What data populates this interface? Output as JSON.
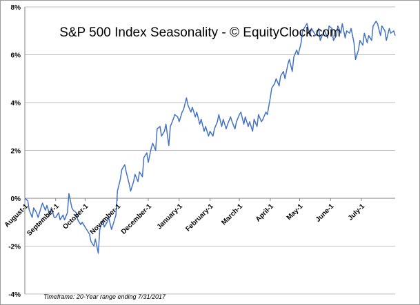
{
  "chart_data": {
    "type": "line",
    "title": "S&P 500 Index Seasonality - © EquityClock.com",
    "footnote": "Timeframe: 20-Year range ending 7/31/2017",
    "xlabel": "",
    "ylabel": "",
    "ylim": [
      -4,
      8
    ],
    "yticks": [
      -4,
      -2,
      0,
      2,
      4,
      6,
      8
    ],
    "ytick_labels": [
      "-4%",
      "-2%",
      "0%",
      "2%",
      "4%",
      "6%",
      "8%"
    ],
    "grid": "horizontal",
    "legend": "none",
    "colors": {
      "line": "#4472c4",
      "grid": "#bfbfbf",
      "axis": "#808080"
    },
    "month_ticks": [
      {
        "label": "August-1",
        "day": 0
      },
      {
        "label": "September-1",
        "day": 21
      },
      {
        "label": "October-1",
        "day": 41
      },
      {
        "label": "November-1",
        "day": 63
      },
      {
        "label": "December-1",
        "day": 84
      },
      {
        "label": "January-1",
        "day": 105
      },
      {
        "label": "February-1",
        "day": 126
      },
      {
        "label": "March-1",
        "day": 146
      },
      {
        "label": "April-1",
        "day": 167
      },
      {
        "label": "May-1",
        "day": 187
      },
      {
        "label": "June-1",
        "day": 208
      },
      {
        "label": "July-1",
        "day": 229
      }
    ],
    "x_max": 252,
    "series": [
      {
        "x": [
          0,
          2,
          3,
          5,
          6,
          8,
          9,
          11,
          12,
          14,
          15,
          17,
          18,
          20,
          21,
          23,
          24,
          26,
          27,
          29,
          30,
          32,
          33,
          35,
          36,
          38,
          39,
          41,
          42,
          44,
          45,
          47,
          48,
          50,
          51,
          53,
          54,
          56,
          57,
          59,
          60,
          62,
          63,
          65,
          66,
          68,
          69,
          71,
          72,
          74,
          75,
          77,
          78,
          80,
          81,
          83,
          84,
          86,
          87,
          89,
          90,
          92,
          93,
          95,
          96,
          98,
          99,
          101,
          102,
          104,
          105,
          107,
          108,
          110,
          111,
          113,
          114,
          116,
          117,
          119,
          120,
          122,
          123,
          125,
          126,
          128,
          129,
          131,
          132,
          134,
          135,
          137,
          138,
          140,
          141,
          143,
          144,
          146,
          147,
          149,
          150,
          152,
          153,
          155,
          156,
          158,
          159,
          161,
          162,
          164,
          165,
          167,
          168,
          170,
          171,
          173,
          174,
          176,
          177,
          179,
          180,
          182,
          183,
          185,
          186,
          188,
          189,
          191,
          192,
          194,
          195,
          197,
          198,
          200,
          201,
          203,
          204,
          206,
          207,
          209,
          210,
          212,
          213,
          215,
          216,
          218,
          219,
          221,
          222,
          224,
          225,
          227,
          228,
          230,
          231,
          233,
          234,
          236,
          237,
          239,
          240,
          242,
          243,
          245,
          246,
          248,
          249,
          251,
          252
        ],
        "values": [
          0.0,
          -0.1,
          -0.5,
          -0.8,
          -0.4,
          -0.6,
          -0.8,
          -0.4,
          -0.2,
          -0.5,
          -0.3,
          -0.7,
          -0.4,
          -0.8,
          -0.8,
          -0.6,
          -0.9,
          -0.7,
          -0.9,
          -0.6,
          0.2,
          -0.4,
          -0.5,
          -0.6,
          -0.9,
          -1.1,
          -1.0,
          -1.2,
          -1.3,
          -1.5,
          -1.8,
          -2.0,
          -1.7,
          -2.3,
          -1.3,
          -0.9,
          -1.2,
          -1.0,
          -0.8,
          -1.3,
          -1.1,
          -0.7,
          0.3,
          0.8,
          1.2,
          1.4,
          1.1,
          0.6,
          0.3,
          0.7,
          1.0,
          0.7,
          1.1,
          0.9,
          1.7,
          1.9,
          1.5,
          2.1,
          2.3,
          2.0,
          2.9,
          3.0,
          2.6,
          2.8,
          3.1,
          2.2,
          3.0,
          3.3,
          3.5,
          3.4,
          3.2,
          3.6,
          3.7,
          4.2,
          3.9,
          3.6,
          3.8,
          3.4,
          3.6,
          3.1,
          3.3,
          2.8,
          3.0,
          2.6,
          2.8,
          2.6,
          2.9,
          3.2,
          3.5,
          3.0,
          3.3,
          2.9,
          3.1,
          3.4,
          3.2,
          2.9,
          3.2,
          3.5,
          3.6,
          3.1,
          3.4,
          3.0,
          3.2,
          2.8,
          3.3,
          3.0,
          3.5,
          3.2,
          3.3,
          3.6,
          3.5,
          4.2,
          4.6,
          4.8,
          5.0,
          4.7,
          5.1,
          5.3,
          5.0,
          5.6,
          5.8,
          5.3,
          5.9,
          6.2,
          6.0,
          6.5,
          7.0,
          7.2,
          7.3,
          6.8,
          7.1,
          6.9,
          6.8,
          7.1,
          6.6,
          6.9,
          7.0,
          6.7,
          7.2,
          7.1,
          6.6,
          6.8,
          7.2,
          6.9,
          7.3,
          6.7,
          7.0,
          6.9,
          7.1,
          6.5,
          5.8,
          6.2,
          6.6,
          6.4,
          6.9,
          6.5,
          6.8,
          6.6,
          7.2,
          7.4,
          7.3,
          6.8,
          7.2,
          7.0,
          6.6,
          7.1,
          6.9,
          7.0,
          6.8
        ]
      }
    ]
  }
}
